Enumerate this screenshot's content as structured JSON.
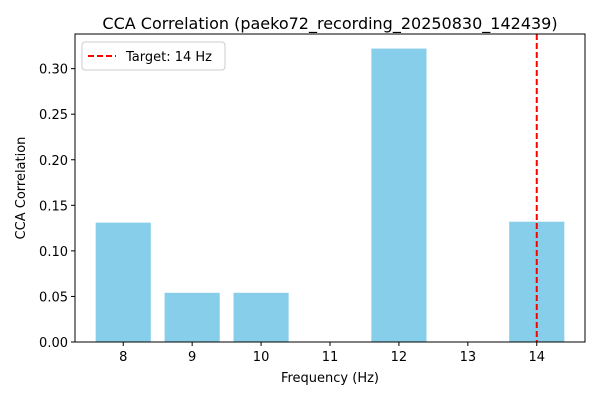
{
  "chart_data": {
    "type": "bar",
    "title": "CCA Correlation (paeko72_recording_20250830_142439)",
    "xlabel": "Frequency (Hz)",
    "ylabel": "CCA Correlation",
    "x": [
      8,
      9,
      10,
      11,
      12,
      13,
      14
    ],
    "values": [
      0.131,
      0.054,
      0.054,
      0.0,
      0.322,
      0.0,
      0.132
    ],
    "xlim": [
      7.3,
      14.7
    ],
    "ylim": [
      0,
      0.338
    ],
    "yticks": [
      0.0,
      0.05,
      0.1,
      0.15,
      0.2,
      0.25,
      0.3
    ],
    "ytick_labels": [
      "0.00",
      "0.05",
      "0.10",
      "0.15",
      "0.20",
      "0.25",
      "0.30"
    ],
    "xtick_labels": [
      "8",
      "9",
      "10",
      "11",
      "12",
      "13",
      "14"
    ],
    "bar_width": 0.8,
    "bar_color": "#87CEEB",
    "grid": false,
    "target_line": {
      "x": 14,
      "label": "Target: 14 Hz",
      "color": "#FF0000",
      "style": "dashed"
    },
    "legend": {
      "placement": "top-left",
      "entries": [
        "Target: 14 Hz"
      ]
    }
  }
}
